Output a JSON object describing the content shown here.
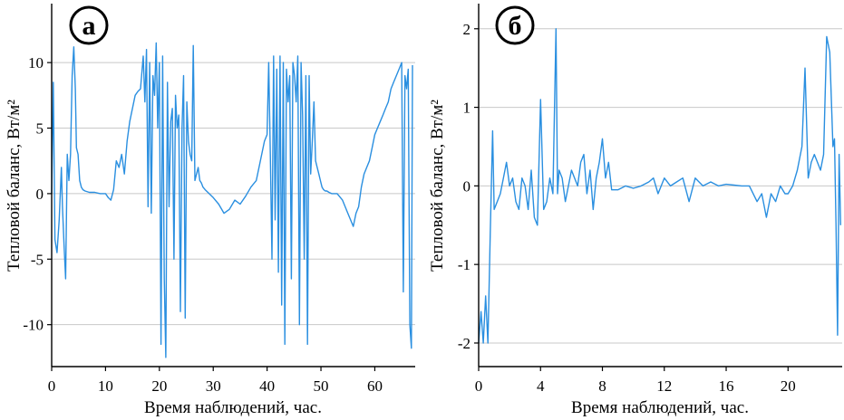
{
  "chart_data": [
    {
      "type": "line",
      "panel_label": "а",
      "xlabel": "Время наблюдений, час.",
      "ylabel": "Тепловой баланс, Вт/м²",
      "xlim": [
        0,
        67.5
      ],
      "ylim": [
        -13.2,
        14.5
      ],
      "xticks": [
        0,
        10,
        20,
        30,
        40,
        50,
        60
      ],
      "yticks": [
        10,
        5,
        0,
        -5,
        -10
      ],
      "ytick_labels": [
        "10",
        "5",
        "0",
        "-5",
        "-10"
      ],
      "grid": "horizontal",
      "color": "#2a8fe0",
      "x": [
        0,
        0.3,
        0.6,
        1,
        1.4,
        1.8,
        2,
        2.3,
        2.6,
        2.9,
        3.2,
        3.5,
        3.8,
        4.1,
        4.4,
        4.6,
        4.9,
        5.2,
        5.5,
        5.8,
        6.2,
        7,
        8,
        9,
        10,
        10.5,
        11,
        11.5,
        12,
        12.5,
        13,
        13.5,
        14,
        14.5,
        15,
        15.5,
        16,
        16.5,
        17,
        17.3,
        17.6,
        17.9,
        18.2,
        18.5,
        18.8,
        19.1,
        19.4,
        19.7,
        20,
        20.3,
        20.6,
        20.9,
        21.2,
        21.5,
        21.8,
        22.1,
        22.4,
        22.7,
        23,
        23.3,
        23.6,
        23.9,
        24.2,
        24.5,
        24.8,
        25.1,
        25.4,
        25.7,
        26,
        26.3,
        26.6,
        26.9,
        27.2,
        27.5,
        27.8,
        28.1,
        28.5,
        29,
        30,
        31,
        32,
        33,
        34,
        35,
        36,
        37,
        38,
        38.5,
        39,
        39.5,
        40,
        40.3,
        40.6,
        40.9,
        41.2,
        41.5,
        41.8,
        42.1,
        42.4,
        42.7,
        43,
        43.3,
        43.6,
        43.9,
        44.2,
        44.5,
        44.8,
        45.1,
        45.4,
        45.7,
        46,
        46.3,
        46.6,
        46.9,
        47.2,
        47.5,
        47.8,
        48.1,
        48.4,
        48.7,
        49,
        49.3,
        49.6,
        49.9,
        50.2,
        50.5,
        50.8,
        51.1,
        51.5,
        52,
        53,
        54,
        55,
        56,
        56.5,
        57,
        57.5,
        58,
        58.5,
        59,
        59.5,
        60,
        60.5,
        61,
        61.5,
        62,
        62.5,
        63,
        63.5,
        64,
        64.5,
        65,
        65.3,
        65.6,
        65.9,
        66.2,
        66.5,
        66.8,
        67
      ],
      "y": [
        0,
        8.5,
        -3.5,
        -4.5,
        -2,
        2,
        -1,
        -4,
        -6.5,
        3,
        1,
        3,
        9,
        11.2,
        8,
        3.5,
        3,
        1,
        0.5,
        0.3,
        0.2,
        0.1,
        0.1,
        0,
        0,
        -0.3,
        -0.5,
        0.3,
        2.5,
        2,
        3,
        1.5,
        4,
        5.5,
        6.5,
        7.5,
        7.8,
        8,
        10.5,
        7,
        11,
        -1,
        10,
        -1.5,
        9,
        7.5,
        11.5,
        5,
        10,
        -11.5,
        10.5,
        -6.5,
        -12.5,
        8.5,
        -1,
        5.5,
        6.5,
        -5,
        7.5,
        5,
        6,
        -9,
        5,
        9,
        -9.5,
        7,
        4,
        3,
        2.5,
        11.3,
        1,
        1.5,
        2,
        1,
        0.8,
        0.5,
        0.3,
        0.1,
        -0.3,
        -0.8,
        -1.5,
        -1.2,
        -0.5,
        -0.8,
        -0.2,
        0.5,
        1,
        2,
        3,
        4,
        4.5,
        10,
        3,
        -5,
        10.5,
        -2,
        9.5,
        -6,
        10.5,
        -8.5,
        10,
        -11.5,
        9.5,
        7,
        9,
        -6.5,
        10,
        9,
        7,
        10.5,
        -10,
        10,
        6,
        -5,
        9,
        -11.5,
        9,
        1.5,
        4,
        7,
        2.5,
        2,
        1.5,
        1,
        0.5,
        0.3,
        0.2,
        0.2,
        0.1,
        0,
        0,
        -0.5,
        -1.5,
        -2.5,
        -1.5,
        -1,
        0.5,
        1.5,
        2,
        2.5,
        3.5,
        4.5,
        5,
        5.5,
        6,
        6.5,
        7,
        8,
        8.5,
        9,
        9.5,
        10,
        -7.5,
        9,
        8,
        9.5,
        -10,
        -11.8,
        9.8
      ]
    },
    {
      "type": "line",
      "panel_label": "б",
      "xlabel": "Время наблюдений, час.",
      "ylabel": "Тепловой баланс, Вт/м²",
      "xlim": [
        0,
        23.5
      ],
      "ylim": [
        -2.3,
        2.32
      ],
      "xticks": [
        0,
        4,
        8,
        12,
        16,
        20
      ],
      "yticks": [
        2,
        1,
        0,
        -1,
        -2
      ],
      "ytick_labels": [
        "2",
        "1",
        "0",
        "-1",
        "-2"
      ],
      "grid": "horizontal",
      "color": "#2a8fe0",
      "x": [
        0,
        0.15,
        0.3,
        0.45,
        0.6,
        0.75,
        0.9,
        1,
        1.2,
        1.4,
        1.6,
        1.8,
        2,
        2.2,
        2.4,
        2.6,
        2.8,
        3,
        3.2,
        3.4,
        3.6,
        3.8,
        4,
        4.2,
        4.4,
        4.6,
        4.8,
        5,
        5.1,
        5.2,
        5.4,
        5.6,
        5.8,
        6,
        6.2,
        6.4,
        6.6,
        6.8,
        7,
        7.2,
        7.4,
        7.6,
        7.8,
        8,
        8.2,
        8.4,
        8.6,
        9,
        9.5,
        10,
        10.5,
        11,
        11.3,
        11.6,
        12,
        12.4,
        12.8,
        13.2,
        13.6,
        14,
        14.5,
        15,
        15.5,
        16,
        16.5,
        17,
        17.5,
        18,
        18.3,
        18.6,
        18.9,
        19.2,
        19.5,
        19.8,
        20,
        20.3,
        20.6,
        20.9,
        21.1,
        21.3,
        21.5,
        21.7,
        21.9,
        22.1,
        22.3,
        22.5,
        22.7,
        22.9,
        23,
        23.1,
        23.2,
        23.3,
        23.4
      ],
      "y": [
        -2,
        -1.6,
        -2,
        -1.4,
        -2,
        -0.6,
        0.7,
        -0.3,
        -0.2,
        -0.1,
        0.1,
        0.3,
        0,
        0.1,
        -0.2,
        -0.3,
        0.1,
        0,
        -0.3,
        0.2,
        -0.4,
        -0.5,
        1.1,
        -0.3,
        -0.2,
        0.1,
        -0.1,
        2,
        -0.1,
        0.2,
        0.1,
        -0.2,
        0,
        0.2,
        0.1,
        0,
        0.3,
        0.4,
        -0.1,
        0.2,
        -0.3,
        0.1,
        0.3,
        0.6,
        0.1,
        0.3,
        -0.05,
        -0.05,
        0,
        -0.03,
        0,
        0.05,
        0.1,
        -0.1,
        0.1,
        0,
        0.05,
        0.1,
        -0.2,
        0.1,
        0,
        0.05,
        0,
        0.02,
        0.01,
        0,
        0,
        -0.2,
        -0.1,
        -0.4,
        -0.1,
        -0.2,
        0,
        -0.1,
        -0.1,
        0,
        0.2,
        0.5,
        1.5,
        0.1,
        0.3,
        0.4,
        0.3,
        0.2,
        0.4,
        1.9,
        1.7,
        0.5,
        0.6,
        -0.5,
        -1.9,
        0.4,
        -0.5
      ]
    }
  ]
}
